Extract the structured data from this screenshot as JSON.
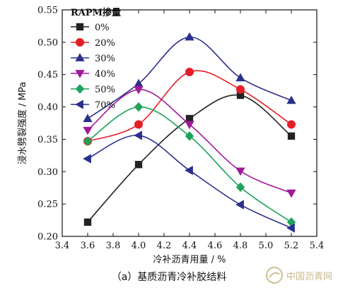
{
  "chart_data": {
    "type": "line",
    "x": [
      3.6,
      4.0,
      4.4,
      4.8,
      5.2
    ],
    "xlabel": "冷补沥青用量 / %",
    "ylabel": "浸水劈裂强度 / MPa",
    "xlim": [
      3.4,
      5.4
    ],
    "ylim": [
      0.2,
      0.55
    ],
    "xticks": [
      3.4,
      3.6,
      3.8,
      4.0,
      4.2,
      4.4,
      4.6,
      4.8,
      5.0,
      5.2,
      5.4
    ],
    "yticks": [
      0.2,
      0.25,
      0.3,
      0.35,
      0.4,
      0.45,
      0.5,
      0.55
    ],
    "grid": false,
    "legend": {
      "title": "RAPM掺量",
      "placement": "top-left"
    },
    "series": [
      {
        "name": "0%",
        "color": "#222222",
        "marker": "square",
        "values": [
          0.222,
          0.311,
          0.382,
          0.418,
          0.355
        ]
      },
      {
        "name": "20%",
        "color": "#e41e26",
        "marker": "circle",
        "values": [
          0.347,
          0.373,
          0.454,
          0.427,
          0.373
        ]
      },
      {
        "name": "30%",
        "color": "#2b2f8c",
        "marker": "triangle-up",
        "values": [
          0.382,
          0.436,
          0.508,
          0.445,
          0.41
        ]
      },
      {
        "name": "40%",
        "color": "#a1199a",
        "marker": "triangle-down",
        "values": [
          0.364,
          0.427,
          0.373,
          0.301,
          0.267
        ]
      },
      {
        "name": "50%",
        "color": "#1fa25a",
        "marker": "diamond",
        "values": [
          0.347,
          0.4,
          0.355,
          0.276,
          0.222
        ]
      },
      {
        "name": "70%",
        "color": "#2b2f8c",
        "marker": "triangle-left",
        "values": [
          0.32,
          0.356,
          0.302,
          0.249,
          0.213
        ]
      }
    ]
  },
  "caption": "（a）基质沥青冷补胶结料",
  "watermark": {
    "text": "中国沥青网",
    "icon": "asphalt-logo-icon"
  }
}
